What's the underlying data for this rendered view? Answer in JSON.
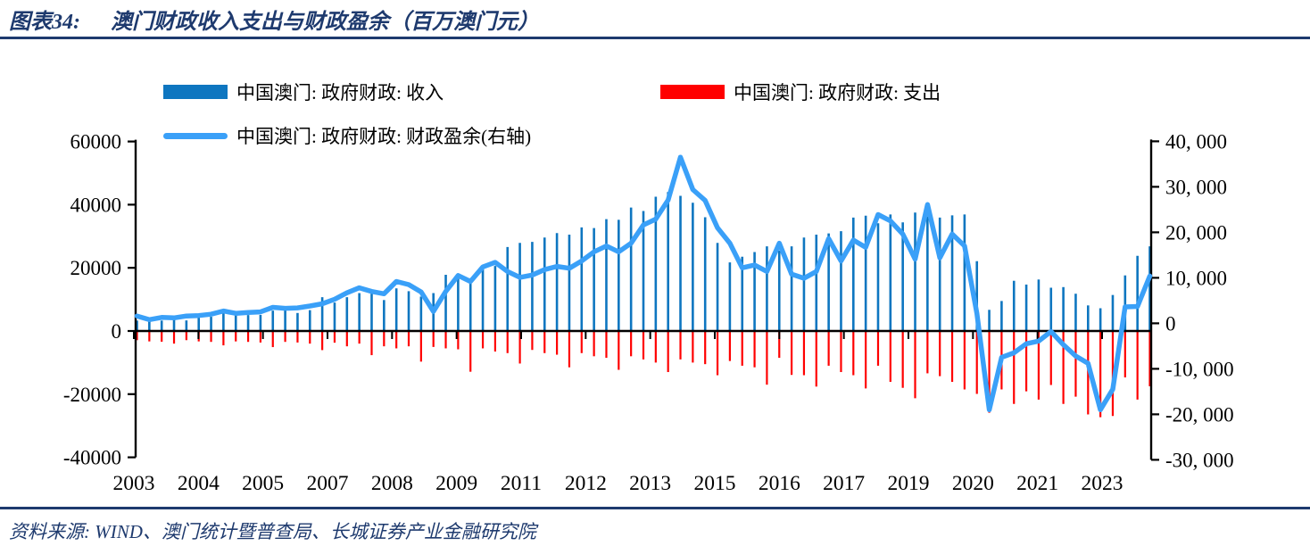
{
  "title": {
    "prefix": "图表34:",
    "text": "澳门财政收入支出与财政盈余（百万澳门元）"
  },
  "source": "资料来源: WIND、澳门统计暨普查局、长城证券产业金融研究院",
  "colors": {
    "navy": "#1e3a6e",
    "revenue": "#0e76c0",
    "expenditure": "#ff0000",
    "surplus": "#3aa0f8",
    "axis": "#000000"
  },
  "legend": {
    "items": [
      {
        "label": "中国澳门: 政府财政: 收入",
        "marker": "bar",
        "color": "#0e76c0"
      },
      {
        "label": "中国澳门: 政府财政: 支出",
        "marker": "bar",
        "color": "#ff0000"
      },
      {
        "label": "中国澳门: 政府财政: 财政盈余(右轴)",
        "marker": "line",
        "color": "#3aa0f8"
      }
    ]
  },
  "chart_data": {
    "type": "bar+line combo, dual axis",
    "left_axis": {
      "ticks": [
        60000,
        40000,
        20000,
        0,
        -20000,
        -40000
      ],
      "labels": [
        "60000",
        "40000",
        "20000",
        "0",
        "-20000",
        "-40000"
      ],
      "range": [
        -40000,
        60000
      ]
    },
    "right_axis": {
      "ticks": [
        40000,
        30000,
        20000,
        10000,
        0,
        -10000,
        -20000,
        -30000
      ],
      "labels": [
        "40, 000",
        "30, 000",
        "20, 000",
        "10, 000",
        "0",
        "-10, 000",
        "-20, 000",
        "-30, 000"
      ],
      "range": [
        -30000,
        40000
      ]
    },
    "x_tick_labels": [
      "2003",
      "2004",
      "2005",
      "2007",
      "2008",
      "2009",
      "2011",
      "2012",
      "2013",
      "2015",
      "2016",
      "2017",
      "2019",
      "2020",
      "2021",
      "2023"
    ],
    "quarters": [
      "2003Q1",
      "2003Q2",
      "2003Q3",
      "2003Q4",
      "2004Q1",
      "2004Q2",
      "2004Q3",
      "2004Q4",
      "2005Q1",
      "2005Q2",
      "2005Q3",
      "2005Q4",
      "2006Q1",
      "2006Q2",
      "2006Q3",
      "2006Q4",
      "2007Q1",
      "2007Q2",
      "2007Q3",
      "2007Q4",
      "2008Q1",
      "2008Q2",
      "2008Q3",
      "2008Q4",
      "2009Q1",
      "2009Q2",
      "2009Q3",
      "2009Q4",
      "2010Q1",
      "2010Q2",
      "2010Q3",
      "2010Q4",
      "2011Q1",
      "2011Q2",
      "2011Q3",
      "2011Q4",
      "2012Q1",
      "2012Q2",
      "2012Q3",
      "2012Q4",
      "2013Q1",
      "2013Q2",
      "2013Q3",
      "2013Q4",
      "2014Q1",
      "2014Q2",
      "2014Q3",
      "2014Q4",
      "2015Q1",
      "2015Q2",
      "2015Q3",
      "2015Q4",
      "2016Q1",
      "2016Q2",
      "2016Q3",
      "2016Q4",
      "2017Q1",
      "2017Q2",
      "2017Q3",
      "2017Q4",
      "2018Q1",
      "2018Q2",
      "2018Q3",
      "2018Q4",
      "2019Q1",
      "2019Q2",
      "2019Q3",
      "2019Q4",
      "2020Q1",
      "2020Q2",
      "2020Q3",
      "2020Q4",
      "2021Q1",
      "2021Q2",
      "2021Q3",
      "2021Q4",
      "2022Q1",
      "2022Q2",
      "2022Q3",
      "2022Q4",
      "2023Q1",
      "2023Q2",
      "2023Q3"
    ],
    "series": [
      {
        "name": "中国澳门: 政府财政: 收入",
        "axis": "left",
        "type": "bar",
        "color": "#0e76c0",
        "values": [
          3300,
          3450,
          3300,
          3650,
          3350,
          4200,
          4500,
          6200,
          5300,
          5050,
          5100,
          6450,
          6800,
          5700,
          6600,
          10700,
          9000,
          10700,
          12000,
          11800,
          9800,
          13500,
          12600,
          10900,
          12000,
          17800,
          17400,
          16700,
          19500,
          20600,
          26600,
          27900,
          28200,
          29600,
          31000,
          30500,
          32800,
          32600,
          35400,
          35200,
          39100,
          38000,
          42500,
          44000,
          42800,
          40600,
          36000,
          27900,
          21700,
          23500,
          25000,
          26800,
          25500,
          26800,
          29600,
          30500,
          30900,
          31600,
          35900,
          36500,
          34100,
          36900,
          34400,
          37500,
          36300,
          35900,
          36600,
          36900,
          22100,
          6700,
          9500,
          15900,
          14700,
          16300,
          13700,
          13900,
          11800,
          8100,
          7200,
          11400,
          17600,
          23800,
          26800
        ]
      },
      {
        "name": "中国澳门: 政府财政: 支出",
        "axis": "left",
        "type": "bar",
        "color": "#ff0000",
        "values": [
          -2900,
          -3300,
          -3400,
          -4000,
          -2900,
          -3300,
          -3450,
          -4550,
          -3300,
          -3450,
          -3650,
          -5100,
          -3450,
          -3650,
          -4000,
          -6050,
          -3700,
          -4850,
          -4000,
          -7650,
          -4850,
          -5500,
          -4850,
          -9700,
          -5050,
          -5500,
          -5800,
          -12900,
          -5500,
          -6500,
          -7000,
          -10300,
          -6000,
          -7000,
          -7500,
          -11500,
          -7000,
          -8000,
          -8500,
          -12300,
          -8000,
          -9000,
          -10000,
          -13000,
          -9000,
          -10000,
          -10500,
          -14000,
          -9500,
          -11000,
          -11500,
          -17000,
          -8500,
          -13900,
          -14000,
          -17600,
          -11000,
          -13000,
          -14000,
          -18200,
          -11000,
          -16100,
          -18000,
          -21300,
          -13400,
          -14300,
          -16100,
          -18500,
          -19900,
          -25900,
          -18500,
          -23100,
          -19100,
          -21700,
          -17100,
          -23100,
          -20800,
          -26400,
          -27300,
          -26900,
          -14700,
          -21700,
          -17500
        ]
      },
      {
        "name": "中国澳门: 政府财政: 财政盈余(右轴)",
        "axis": "right",
        "type": "line",
        "color": "#3aa0f8",
        "values": [
          1600,
          800,
          1300,
          1200,
          1600,
          1700,
          2000,
          2700,
          2200,
          2400,
          2500,
          3500,
          3300,
          3400,
          3800,
          4300,
          5300,
          6700,
          7800,
          7000,
          6500,
          9200,
          8500,
          6900,
          2600,
          7000,
          10500,
          9200,
          12400,
          13400,
          11400,
          10100,
          10600,
          11800,
          12500,
          12100,
          13700,
          15700,
          17000,
          15700,
          17600,
          21600,
          22900,
          27100,
          36500,
          29400,
          27000,
          21000,
          17600,
          12200,
          12800,
          11400,
          17600,
          10800,
          9900,
          11400,
          18600,
          13700,
          18300,
          16700,
          23900,
          22500,
          19600,
          14100,
          26100,
          14400,
          19600,
          17000,
          2200,
          -19000,
          -7500,
          -6500,
          -4500,
          -3900,
          -1800,
          -4700,
          -7200,
          -8800,
          -19000,
          -14500,
          3600,
          3700,
          10400
        ]
      }
    ]
  }
}
